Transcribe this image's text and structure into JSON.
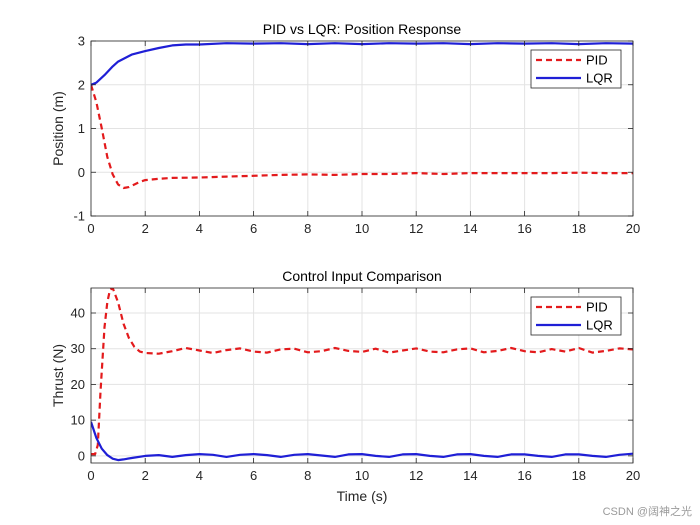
{
  "watermark": "CSDN @阔神之光",
  "chart_data": [
    {
      "type": "line",
      "title": "PID vs LQR: Position Response",
      "xlabel": "",
      "ylabel": "Position (m)",
      "xlim": [
        0,
        20
      ],
      "ylim": [
        -1,
        3
      ],
      "xticks": [
        0,
        2,
        4,
        6,
        8,
        10,
        12,
        14,
        16,
        18,
        20
      ],
      "yticks": [
        -1,
        0,
        1,
        2,
        3
      ],
      "grid": true,
      "legend": "top-right",
      "series": [
        {
          "name": "PID",
          "color": "#e31a1c",
          "style": "dashed",
          "x": [
            0,
            0.2,
            0.4,
            0.6,
            0.8,
            1.0,
            1.2,
            1.4,
            1.6,
            1.8,
            2.0,
            2.5,
            3.0,
            4.0,
            5.0,
            6.0,
            7.0,
            8.0,
            9.0,
            10.0,
            11.0,
            12.0,
            13.0,
            14.0,
            15.0,
            16.0,
            17.0,
            18.0,
            19.0,
            20.0
          ],
          "y": [
            2.0,
            1.6,
            1.0,
            0.35,
            -0.05,
            -0.28,
            -0.36,
            -0.34,
            -0.28,
            -0.22,
            -0.18,
            -0.15,
            -0.13,
            -0.12,
            -0.1,
            -0.08,
            -0.06,
            -0.05,
            -0.06,
            -0.04,
            -0.04,
            -0.02,
            -0.04,
            -0.02,
            -0.02,
            -0.02,
            -0.02,
            -0.01,
            -0.02,
            -0.02
          ]
        },
        {
          "name": "LQR",
          "color": "#1f1fd6",
          "style": "solid",
          "x": [
            0,
            0.2,
            0.5,
            0.8,
            1.0,
            1.5,
            2.0,
            2.5,
            3.0,
            3.5,
            4.0,
            5.0,
            6.0,
            7.0,
            8.0,
            9.0,
            10.0,
            11.0,
            12.0,
            13.0,
            14.0,
            15.0,
            16.0,
            17.0,
            18.0,
            19.0,
            20.0
          ],
          "y": [
            2.0,
            2.05,
            2.22,
            2.42,
            2.53,
            2.69,
            2.77,
            2.84,
            2.9,
            2.92,
            2.92,
            2.95,
            2.94,
            2.95,
            2.93,
            2.95,
            2.93,
            2.95,
            2.94,
            2.95,
            2.93,
            2.95,
            2.94,
            2.95,
            2.93,
            2.95,
            2.94
          ]
        }
      ]
    },
    {
      "type": "line",
      "title": "Control Input Comparison",
      "xlabel": "Time (s)",
      "ylabel": "Thrust (N)",
      "xlim": [
        0,
        20
      ],
      "ylim": [
        -2,
        47
      ],
      "xticks": [
        0,
        2,
        4,
        6,
        8,
        10,
        12,
        14,
        16,
        18,
        20
      ],
      "yticks": [
        0,
        10,
        20,
        30,
        40
      ],
      "grid": true,
      "legend": "top-right",
      "series": [
        {
          "name": "PID",
          "color": "#e31a1c",
          "style": "dashed",
          "x": [
            0,
            0.15,
            0.25,
            0.35,
            0.5,
            0.6,
            0.7,
            0.8,
            1.0,
            1.2,
            1.4,
            1.6,
            1.8,
            2.0,
            2.5,
            3.0,
            3.5,
            4.0,
            4.5,
            5.0,
            5.5,
            6.0,
            6.5,
            7.0,
            7.5,
            8.0,
            8.5,
            9.0,
            9.5,
            10.0,
            10.5,
            11.0,
            11.5,
            12.0,
            12.5,
            13.0,
            13.5,
            14.0,
            14.5,
            15.0,
            15.5,
            16.0,
            16.5,
            17.0,
            17.5,
            18.0,
            18.5,
            19.0,
            19.5,
            20.0
          ],
          "y": [
            0.5,
            0.5,
            3.0,
            18.0,
            36.0,
            43.0,
            46.5,
            47.0,
            43.0,
            37.0,
            33.0,
            30.5,
            29.2,
            28.8,
            28.6,
            29.3,
            30.2,
            29.5,
            28.8,
            29.6,
            30.1,
            29.2,
            28.9,
            29.8,
            30.0,
            29.0,
            29.3,
            30.2,
            29.4,
            29.1,
            30.0,
            28.9,
            29.5,
            30.1,
            29.2,
            29.0,
            29.8,
            30.1,
            29.0,
            29.4,
            30.2,
            29.3,
            29.0,
            29.9,
            29.2,
            30.2,
            28.9,
            29.4,
            30.1,
            29.8
          ]
        },
        {
          "name": "LQR",
          "color": "#1f1fd6",
          "style": "solid",
          "x": [
            0,
            0.2,
            0.4,
            0.6,
            0.8,
            1.0,
            1.2,
            1.5,
            2.0,
            2.5,
            3.0,
            3.5,
            4.0,
            4.5,
            5.0,
            5.5,
            6.0,
            6.5,
            7.0,
            7.5,
            8.0,
            8.5,
            9.0,
            9.5,
            10.0,
            10.5,
            11.0,
            11.5,
            12.0,
            12.5,
            13.0,
            13.5,
            14.0,
            14.5,
            15.0,
            15.5,
            16.0,
            16.5,
            17.0,
            17.5,
            18.0,
            18.5,
            19.0,
            19.5,
            20.0
          ],
          "y": [
            9.5,
            5.0,
            2.0,
            0.2,
            -0.8,
            -1.2,
            -1.0,
            -0.6,
            0.0,
            0.2,
            -0.3,
            0.2,
            0.5,
            0.3,
            -0.3,
            0.3,
            0.5,
            0.2,
            -0.3,
            0.3,
            0.5,
            0.1,
            -0.3,
            0.4,
            0.5,
            0.0,
            -0.3,
            0.4,
            0.5,
            0.0,
            -0.3,
            0.4,
            0.5,
            0.0,
            -0.3,
            0.4,
            0.4,
            0.0,
            -0.3,
            0.4,
            0.4,
            0.0,
            -0.3,
            0.3,
            0.6
          ]
        }
      ]
    }
  ]
}
